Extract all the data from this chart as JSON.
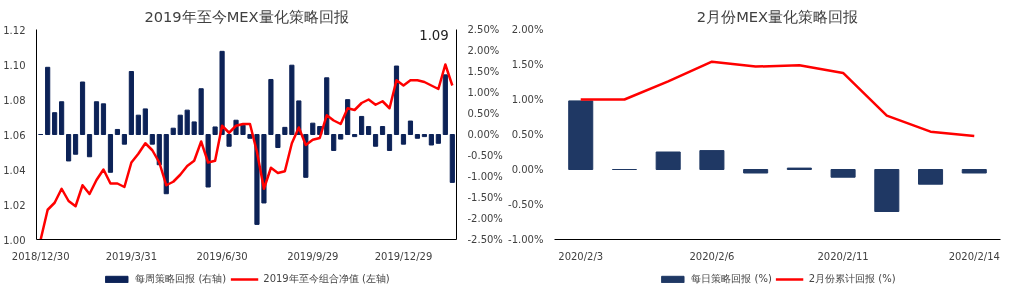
{
  "chart_data": [
    {
      "type": "bar",
      "title": "2019年至今MEX量化策略回报",
      "categories": [
        "2018/12/30",
        null,
        null,
        null,
        null,
        null,
        null,
        null,
        null,
        null,
        null,
        null,
        null,
        "2019/3/31",
        null,
        null,
        null,
        null,
        null,
        null,
        null,
        null,
        null,
        null,
        null,
        null,
        "2019/6/30",
        null,
        null,
        null,
        null,
        null,
        null,
        null,
        null,
        null,
        null,
        null,
        null,
        "2019/9/29",
        null,
        null,
        null,
        null,
        null,
        null,
        null,
        null,
        null,
        null,
        null,
        null,
        "2019/12/29",
        null,
        null,
        null,
        null,
        null,
        null,
        null
      ],
      "series": [
        {
          "name": "每周策略回报 (右轴)",
          "type": "bar",
          "axis": "y2",
          "color": "#0c2257",
          "values": [
            0,
            1.6,
            0.52,
            0.78,
            -0.63,
            -0.47,
            1.25,
            -0.53,
            0.78,
            0.73,
            -0.9,
            0.12,
            -0.23,
            1.5,
            0.46,
            0.61,
            -0.23,
            -0.72,
            -1.41,
            0.15,
            0.46,
            0.58,
            0.3,
            1.09,
            -1.25,
            0.18,
            1.98,
            -0.28,
            0.34,
            0.22,
            -0.09,
            -2.14,
            -1.63,
            1.31,
            -0.31,
            0.17,
            1.65,
            0.8,
            -1.02,
            0.27,
            0.19,
            1.35,
            -0.38,
            -0.11,
            0.83,
            -0.05,
            0.43,
            0.19,
            -0.28,
            0.19,
            -0.38,
            1.63,
            -0.23,
            0.32,
            -0.09,
            -0.05,
            -0.25,
            -0.21,
            1.42,
            -1.14
          ]
        },
        {
          "name": "2019年至今组合净值 (左轴)",
          "type": "line",
          "axis": "y",
          "color": "#ff0000",
          "values": [
            1.0,
            1.017,
            1.021,
            1.029,
            1.022,
            1.019,
            1.031,
            1.026,
            1.034,
            1.04,
            1.032,
            1.032,
            1.03,
            1.044,
            1.049,
            1.055,
            1.051,
            1.044,
            1.031,
            1.033,
            1.037,
            1.042,
            1.045,
            1.056,
            1.044,
            1.045,
            1.065,
            1.061,
            1.065,
            1.066,
            1.066,
            1.05,
            1.029,
            1.041,
            1.038,
            1.039,
            1.055,
            1.064,
            1.054,
            1.057,
            1.058,
            1.071,
            1.068,
            1.066,
            1.075,
            1.074,
            1.078,
            1.08,
            1.077,
            1.079,
            1.075,
            1.091,
            1.088,
            1.091,
            1.091,
            1.09,
            1.088,
            1.086,
            1.1,
            1.088
          ]
        }
      ],
      "ylim": [
        1.0,
        1.12
      ],
      "yticks": [
        {
          "value": 1.0,
          "label": "1.00"
        },
        {
          "value": 1.02,
          "label": "1.02"
        },
        {
          "value": 1.04,
          "label": "1.04"
        },
        {
          "value": 1.06,
          "label": "1.06"
        },
        {
          "value": 1.08,
          "label": "1.08"
        },
        {
          "value": 1.1,
          "label": "1.10"
        },
        {
          "value": 1.12,
          "label": "1.12"
        }
      ],
      "y2lim": [
        -2.5,
        2.5
      ],
      "y2ticks": [
        {
          "value": 2.5,
          "label": "2.50%"
        },
        {
          "value": 2.0,
          "label": "2.00%"
        },
        {
          "value": 1.5,
          "label": "1.50%"
        },
        {
          "value": 1.0,
          "label": "1.00%"
        },
        {
          "value": 0.5,
          "label": "0.50%"
        },
        {
          "value": 0,
          "label": "0.00%"
        },
        {
          "value": -0.5,
          "label": "-0.50%"
        },
        {
          "value": -1.0,
          "label": "-1.00%"
        },
        {
          "value": -1.5,
          "label": "-1.50%"
        },
        {
          "value": -2.0,
          "label": "-2.00%"
        },
        {
          "value": -2.5,
          "label": "-2.50%"
        }
      ],
      "annotations": [
        "1.09"
      ],
      "legend": "bottom",
      "grid": false
    },
    {
      "type": "bar",
      "title": "2月份MEX量化策略回报",
      "categories": [
        "2020/2/3",
        null,
        null,
        "2020/2/6",
        null,
        null,
        "2020/2/11",
        null,
        null,
        "2020/2/14"
      ],
      "series": [
        {
          "name": "每日策略回报 (%)",
          "type": "bar",
          "color": "#1f3864",
          "values": [
            0.98,
            0,
            0.25,
            0.27,
            -0.05,
            0.02,
            -0.11,
            -0.6,
            -0.21,
            -0.05
          ]
        },
        {
          "name": "2月份累计回报 (%)",
          "type": "line",
          "color": "#ff0000",
          "values": [
            1.0,
            1.0,
            1.26,
            1.54,
            1.47,
            1.49,
            1.38,
            0.77,
            0.54,
            0.48
          ]
        }
      ],
      "ylim": [
        -1.0,
        2.0
      ],
      "yticks": [
        {
          "value": 2.0,
          "label": "2.00%"
        },
        {
          "value": 1.5,
          "label": "1.50%"
        },
        {
          "value": 1.0,
          "label": "1.00%"
        },
        {
          "value": 0.5,
          "label": "0.50%"
        },
        {
          "value": 0,
          "label": "0.00%"
        },
        {
          "value": -0.5,
          "label": "-0.50%"
        },
        {
          "value": -1.0,
          "label": "-1.00%"
        }
      ],
      "legend": "bottom",
      "grid": false
    }
  ]
}
